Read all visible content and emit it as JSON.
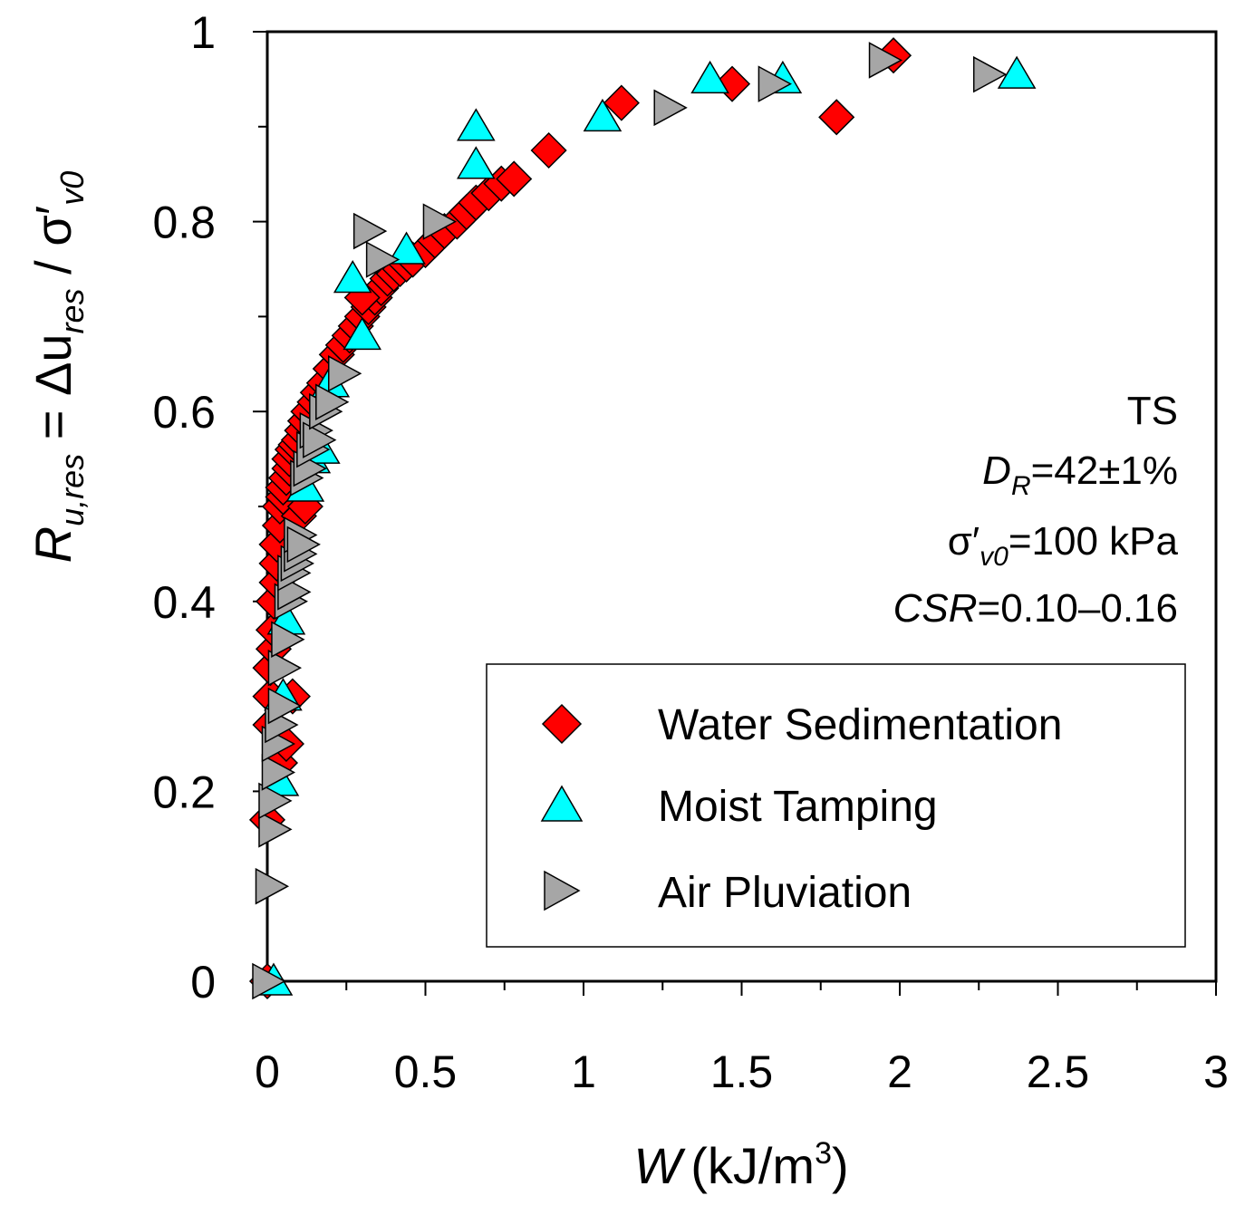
{
  "chart_data": {
    "type": "scatter",
    "xlabel": {
      "symbol": "W",
      "units_main": "(kJ/m",
      "units_sup": "3",
      "units_close": ")"
    },
    "ylabel": {
      "main": "R",
      "sub": "u,res",
      "eq": " = Δu",
      "sub2": "res",
      "slash": " / σ′",
      "sub3": "v0"
    },
    "xlim": [
      0,
      3
    ],
    "ylim": [
      0,
      1
    ],
    "xticks": [
      0,
      0.5,
      1,
      1.5,
      2,
      2.5,
      3
    ],
    "xtick_labels": [
      "0",
      "0.5",
      "1",
      "1.5",
      "2",
      "2.5",
      "3"
    ],
    "yticks": [
      0,
      0.2,
      0.4,
      0.6,
      0.8,
      1
    ],
    "ytick_labels": [
      "0",
      "0.2",
      "0.4",
      "0.6",
      "0.8",
      "1"
    ],
    "annotation": {
      "line1": "TS",
      "line2_italic": "D",
      "line2_sub": "R",
      "line2_rest": "=42±1%",
      "line3_pre": "σ′",
      "line3_sub": "v0",
      "line3_rest": "=100 kPa",
      "line4_italic": "CSR",
      "line4_rest": "=0.10–0.16"
    },
    "legend_position": "bottom-right",
    "series": [
      {
        "name": "Water Sedimentation",
        "marker": "diamond",
        "color": "#ff0000",
        "x": [
          0.0,
          0.0,
          0.01,
          0.01,
          0.01,
          0.02,
          0.02,
          0.02,
          0.03,
          0.03,
          0.03,
          0.04,
          0.04,
          0.05,
          0.05,
          0.06,
          0.07,
          0.07,
          0.08,
          0.09,
          0.1,
          0.11,
          0.12,
          0.13,
          0.15,
          0.16,
          0.18,
          0.2,
          0.22,
          0.24,
          0.26,
          0.28,
          0.3,
          0.32,
          0.34,
          0.36,
          0.38,
          0.4,
          0.42,
          0.44,
          0.46,
          0.5,
          0.53,
          0.56,
          0.6,
          0.63,
          0.66,
          0.7,
          0.74,
          0.78,
          0.89,
          1.12,
          1.47,
          1.8,
          1.98,
          0.04,
          0.06,
          0.08,
          0.1,
          0.12,
          0.3
        ],
        "y": [
          0.0,
          0.17,
          0.27,
          0.3,
          0.33,
          0.35,
          0.37,
          0.4,
          0.42,
          0.44,
          0.46,
          0.48,
          0.5,
          0.51,
          0.52,
          0.53,
          0.54,
          0.55,
          0.56,
          0.565,
          0.57,
          0.58,
          0.59,
          0.6,
          0.61,
          0.62,
          0.63,
          0.645,
          0.66,
          0.67,
          0.68,
          0.69,
          0.7,
          0.71,
          0.72,
          0.73,
          0.74,
          0.745,
          0.75,
          0.755,
          0.76,
          0.77,
          0.78,
          0.79,
          0.8,
          0.81,
          0.82,
          0.83,
          0.84,
          0.845,
          0.875,
          0.925,
          0.945,
          0.91,
          0.975,
          0.23,
          0.25,
          0.3,
          0.49,
          0.5,
          0.72
        ]
      },
      {
        "name": "Moist Tamping",
        "marker": "triangle-up",
        "color": "#00ffff",
        "x": [
          0.02,
          0.04,
          0.05,
          0.06,
          0.12,
          0.14,
          0.17,
          0.2,
          0.27,
          0.3,
          0.44,
          0.66,
          0.66,
          1.06,
          1.4,
          1.63,
          2.37
        ],
        "y": [
          0.0,
          0.21,
          0.3,
          0.38,
          0.52,
          0.55,
          0.56,
          0.63,
          0.74,
          0.68,
          0.77,
          0.86,
          0.9,
          0.91,
          0.95,
          0.95,
          0.955
        ]
      },
      {
        "name": "Air Pluviation",
        "marker": "triangle-right",
        "color": "#a6a6a6",
        "x": [
          0.0,
          0.01,
          0.02,
          0.02,
          0.03,
          0.03,
          0.04,
          0.05,
          0.05,
          0.06,
          0.07,
          0.08,
          0.08,
          0.09,
          0.1,
          0.1,
          0.11,
          0.12,
          0.13,
          0.14,
          0.15,
          0.16,
          0.18,
          0.2,
          0.24,
          0.32,
          0.36,
          0.54,
          1.27,
          1.6,
          1.95,
          2.28
        ],
        "y": [
          0.0,
          0.1,
          0.16,
          0.19,
          0.22,
          0.25,
          0.27,
          0.29,
          0.33,
          0.36,
          0.4,
          0.41,
          0.43,
          0.44,
          0.45,
          0.47,
          0.46,
          0.53,
          0.54,
          0.56,
          0.58,
          0.57,
          0.6,
          0.61,
          0.64,
          0.79,
          0.76,
          0.8,
          0.92,
          0.945,
          0.97,
          0.955
        ]
      }
    ]
  }
}
